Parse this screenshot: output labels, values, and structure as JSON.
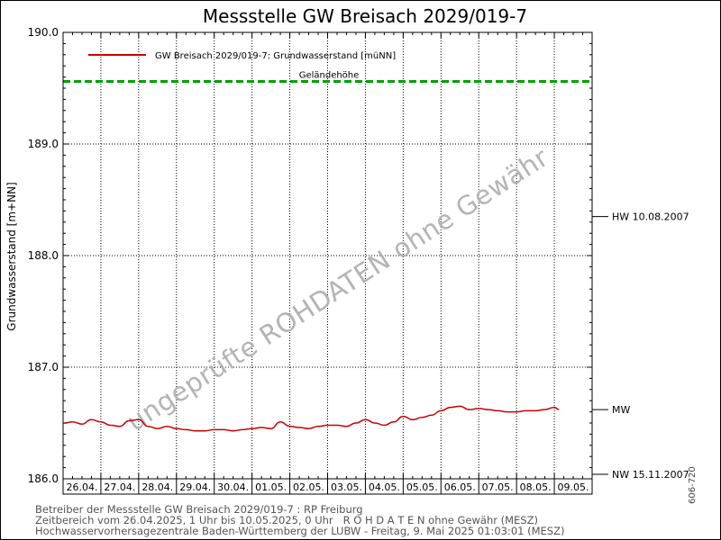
{
  "chart_data": {
    "type": "line",
    "title": "Messstelle GW Breisach 2029/019-7",
    "ylabel": "Grundwasserstand [m+NN]",
    "ylim": [
      186.0,
      190.0
    ],
    "yticks": [
      "186.0",
      "187.0",
      "188.0",
      "189.0",
      "190.0"
    ],
    "xlim": [
      "26.04.2025 00:00",
      "10.05.2025 00:00"
    ],
    "date_labels": [
      "26.04.",
      "27.04.",
      "28.04.",
      "29.04.",
      "30.04.",
      "01.05.",
      "02.05.",
      "03.05.",
      "04.05.",
      "05.05.",
      "06.05.",
      "07.05.",
      "08.05.",
      "09.05."
    ],
    "grid": true,
    "legend_position": "top-left",
    "series": [
      {
        "name": "GW Breisach 2029/019-7: Grundwasserstand  [müNN]",
        "color": "#cc0000",
        "x": [
          "26.04.2025 01:00",
          "26.04.2025 06:00",
          "26.04.2025 12:00",
          "26.04.2025 18:00",
          "27.04.2025 00:00",
          "27.04.2025 06:00",
          "27.04.2025 12:00",
          "27.04.2025 18:00",
          "28.04.2025 00:00",
          "28.04.2025 06:00",
          "28.04.2025 12:00",
          "28.04.2025 18:00",
          "29.04.2025 00:00",
          "29.04.2025 06:00",
          "29.04.2025 12:00",
          "29.04.2025 18:00",
          "30.04.2025 00:00",
          "30.04.2025 06:00",
          "30.04.2025 12:00",
          "30.04.2025 18:00",
          "01.05.2025 00:00",
          "01.05.2025 06:00",
          "01.05.2025 12:00",
          "01.05.2025 18:00",
          "02.05.2025 00:00",
          "02.05.2025 06:00",
          "02.05.2025 12:00",
          "02.05.2025 18:00",
          "03.05.2025 00:00",
          "03.05.2025 06:00",
          "03.05.2025 12:00",
          "03.05.2025 18:00",
          "04.05.2025 00:00",
          "04.05.2025 06:00",
          "04.05.2025 12:00",
          "04.05.2025 18:00",
          "05.05.2025 00:00",
          "05.05.2025 06:00",
          "05.05.2025 12:00",
          "05.05.2025 18:00",
          "06.05.2025 00:00",
          "06.05.2025 06:00",
          "06.05.2025 12:00",
          "06.05.2025 18:00",
          "07.05.2025 00:00",
          "07.05.2025 06:00",
          "07.05.2025 12:00",
          "07.05.2025 18:00",
          "08.05.2025 00:00",
          "08.05.2025 06:00",
          "08.05.2025 12:00",
          "08.05.2025 18:00",
          "09.05.2025 00:00",
          "09.05.2025 03:00"
        ],
        "values": [
          186.5,
          186.51,
          186.49,
          186.53,
          186.51,
          186.48,
          186.47,
          186.52,
          186.53,
          186.47,
          186.45,
          186.47,
          186.45,
          186.44,
          186.43,
          186.43,
          186.44,
          186.44,
          186.43,
          186.44,
          186.45,
          186.46,
          186.45,
          186.51,
          186.47,
          186.46,
          186.45,
          186.47,
          186.48,
          186.48,
          186.47,
          186.5,
          186.53,
          186.5,
          186.48,
          186.51,
          186.56,
          186.53,
          186.55,
          186.57,
          186.61,
          186.64,
          186.65,
          186.62,
          186.63,
          186.62,
          186.61,
          186.6,
          186.6,
          186.61,
          186.61,
          186.62,
          186.64,
          186.62
        ]
      }
    ],
    "annotations": [
      {
        "label": "Geländehöhe",
        "value": 189.56,
        "color": "#00a000",
        "style": "dashed"
      },
      {
        "label": "HW 10.08.2007",
        "value": 188.35
      },
      {
        "label": "MW",
        "value": 186.62
      },
      {
        "label": "NW 15.11.2007",
        "value": 186.04
      }
    ],
    "watermark": "ungeprüfte ROHDATEN ohne Gewähr"
  },
  "footer": {
    "line1": "Betreiber der Messstelle GW Breisach 2029/019-7 : RP Freiburg",
    "line2": "Zeitbereich vom 26.04.2025, 1 Uhr bis 10.05.2025, 0 Uhr   R O H D A T E N ohne Gewähr (MESZ)",
    "line3": "Hochwasservorhersagezentrale Baden-Württemberg der LUBW - Freitag, 9. Mai 2025 01:03:01 (MESZ)"
  },
  "side_code": "606-720"
}
